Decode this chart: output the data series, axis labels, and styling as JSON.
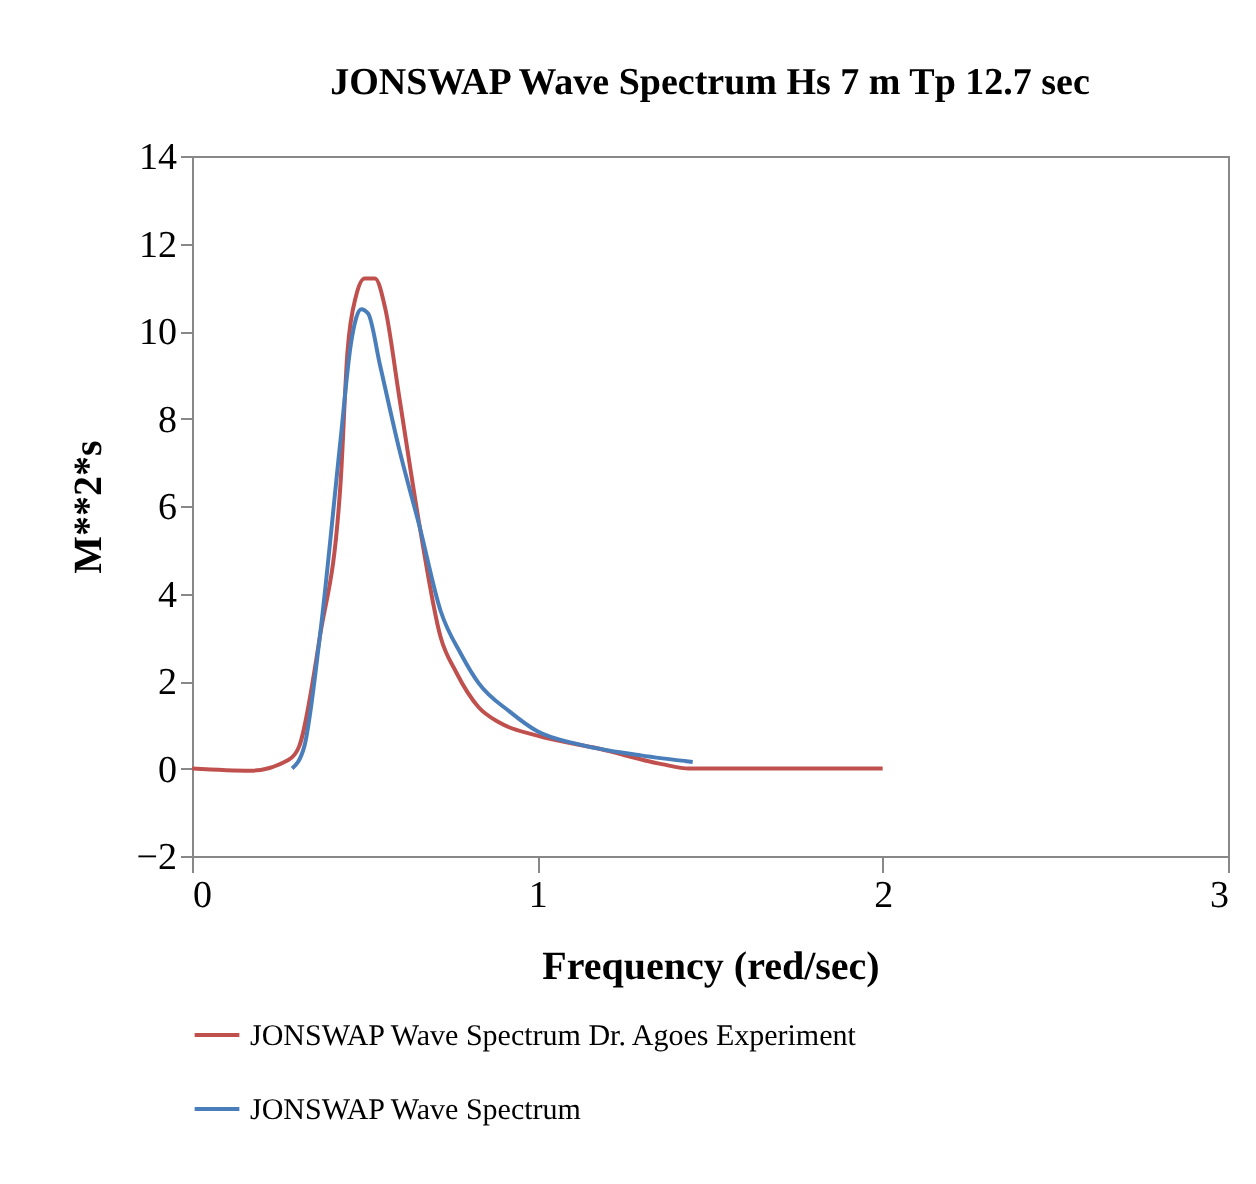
{
  "chart_data": {
    "type": "line",
    "title": "JONSWAP Wave Spectrum Hs 7 m  Tp 12.7 sec",
    "xlabel": "Frequency (red/sec)",
    "ylabel": "M**2*s",
    "xlim": [
      0,
      3
    ],
    "xticks": [
      0,
      1,
      2,
      3
    ],
    "ylim": [
      -2,
      14
    ],
    "yticks": [
      -2,
      0,
      2,
      4,
      6,
      8,
      10,
      12,
      14
    ],
    "grid": false,
    "legend": "bottom",
    "series": [
      {
        "name": "JONSWAP Wave Spectrum Dr. Agoes Experiment",
        "color": "#c0504d",
        "x": [
          0,
          0.17,
          0.28,
          0.31,
          0.37,
          0.43,
          0.45,
          0.475,
          0.5,
          0.53,
          0.56,
          0.6,
          0.66,
          0.72,
          0.765,
          0.83,
          0.89,
          1.0,
          1.18,
          1.36,
          1.44,
          2.0
        ],
        "values": [
          0,
          -0.05,
          0.2,
          0.5,
          3,
          6.5,
          9.5,
          10.8,
          11.2,
          11.2,
          10.5,
          8.5,
          5.5,
          3.0,
          2.2,
          1.4,
          1.05,
          0.75,
          0.45,
          0.1,
          0,
          0
        ]
      },
      {
        "name": "JONSWAP Wave Spectrum",
        "color": "#4a7ebb",
        "x": [
          0.29,
          0.325,
          0.37,
          0.43,
          0.46,
          0.49,
          0.51,
          0.545,
          0.6,
          0.66,
          0.72,
          0.78,
          0.83,
          0.92,
          1.0,
          1.12,
          1.3,
          1.45
        ],
        "values": [
          0,
          0.5,
          3,
          7.5,
          9.7,
          10.5,
          10.4,
          9.2,
          7.3,
          5.5,
          3.6,
          2.6,
          1.95,
          1.3,
          0.85,
          0.55,
          0.3,
          0.15
        ]
      }
    ]
  }
}
